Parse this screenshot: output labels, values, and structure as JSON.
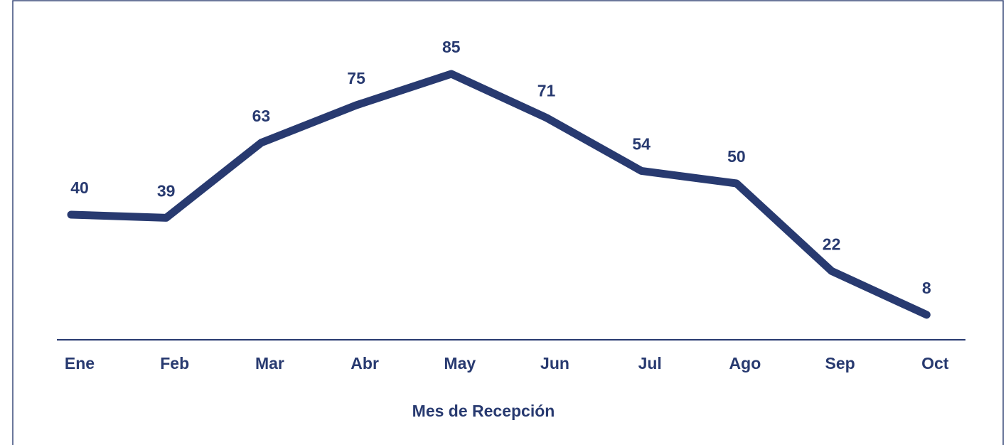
{
  "chart_data": {
    "type": "line",
    "x_label": "Mes de Recepción",
    "categories": [
      "Ene",
      "Feb",
      "Mar",
      "Abr",
      "May",
      "Jun",
      "Jul",
      "Ago",
      "Sep",
      "Oct"
    ],
    "values": [
      40,
      39,
      63,
      75,
      85,
      71,
      54,
      50,
      22,
      8
    ],
    "color": "#283a70"
  }
}
